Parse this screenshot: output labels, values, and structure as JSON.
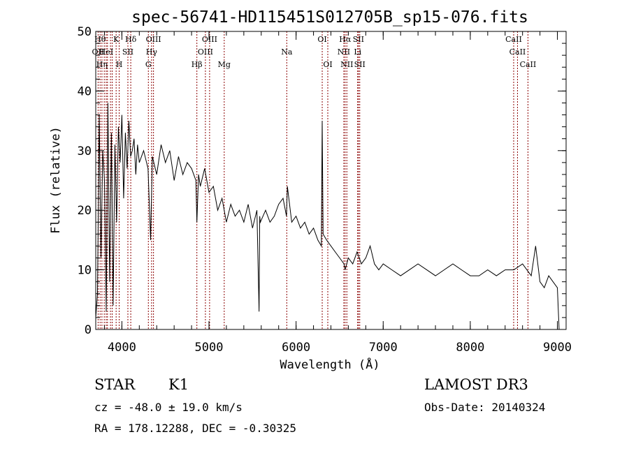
{
  "chart_data": {
    "type": "line",
    "title": "spec-56741-HD115451S012705B_sp15-076.fits",
    "xlabel": "Wavelength (Å)",
    "ylabel": "Flux (relative)",
    "xlim": [
      3700,
      9100
    ],
    "ylim": [
      0,
      50
    ],
    "xticks": [
      4000,
      5000,
      6000,
      7000,
      8000,
      9000
    ],
    "yticks": [
      0,
      10,
      20,
      30,
      40,
      50
    ],
    "grid": false,
    "line_color": "#000000",
    "marker_color": "#8b0000",
    "series": [
      {
        "x": [
          3700,
          3720,
          3740,
          3760,
          3780,
          3800,
          3820,
          3840,
          3860,
          3880,
          3900,
          3920,
          3940,
          3960,
          3980,
          4000,
          4020,
          4040,
          4060,
          4080,
          4100,
          4120,
          4140,
          4160,
          4180,
          4200,
          4250,
          4300,
          4330,
          4350,
          4400,
          4450,
          4500,
          4550,
          4600,
          4650,
          4700,
          4750,
          4800,
          4850,
          4861,
          4880,
          4900,
          4950,
          5000,
          5050,
          5100,
          5150,
          5200,
          5250,
          5300,
          5350,
          5400,
          5450,
          5500,
          5550,
          5575,
          5582,
          5590,
          5650,
          5700,
          5750,
          5800,
          5850,
          5890,
          5900,
          5950,
          6000,
          6050,
          6100,
          6150,
          6200,
          6250,
          6290,
          6300,
          6310,
          6350,
          6400,
          6450,
          6500,
          6550,
          6563,
          6600,
          6650,
          6700,
          6750,
          6800,
          6850,
          6900,
          6950,
          7000,
          7100,
          7200,
          7300,
          7400,
          7500,
          7600,
          7700,
          7800,
          7900,
          8000,
          8100,
          8200,
          8300,
          8400,
          8500,
          8600,
          8700,
          8750,
          8800,
          8850,
          8900,
          8950,
          9000,
          9020
        ],
        "y": [
          2,
          6,
          36,
          12,
          30,
          25,
          3,
          38,
          8,
          33,
          4,
          31,
          18,
          34,
          28,
          36,
          22,
          33,
          27,
          35,
          29,
          30,
          32,
          26,
          31,
          28,
          30,
          27,
          15,
          29,
          26,
          31,
          28,
          30,
          25,
          29,
          26,
          28,
          27,
          25,
          18,
          26,
          24,
          27,
          23,
          24,
          20,
          22,
          18,
          21,
          19,
          20,
          18,
          21,
          17,
          20,
          3,
          19,
          18,
          20,
          18,
          19,
          21,
          22,
          19,
          24,
          18,
          19,
          17,
          18,
          16,
          17,
          15,
          14,
          35,
          16,
          15,
          14,
          13,
          12,
          11,
          10,
          12,
          11,
          13,
          11,
          12,
          14,
          11,
          10,
          11,
          10,
          9,
          10,
          11,
          10,
          9,
          10,
          11,
          10,
          9,
          9,
          10,
          9,
          10,
          10,
          11,
          9,
          14,
          8,
          7,
          9,
          8,
          7,
          0
        ]
      }
    ],
    "lines": [
      {
        "wl": 3727,
        "label": "OII",
        "row": 1
      },
      {
        "wl": 3750,
        "label": "Hθ",
        "row": 0
      },
      {
        "wl": 3771,
        "label": "Hη",
        "row": 2
      },
      {
        "wl": 3798,
        "label": "",
        "row": -1
      },
      {
        "wl": 3820,
        "label": "HeI",
        "row": 1
      },
      {
        "wl": 3835,
        "label": "",
        "row": -1
      },
      {
        "wl": 3869,
        "label": "",
        "row": -1
      },
      {
        "wl": 3889,
        "label": "",
        "row": -1
      },
      {
        "wl": 3934,
        "label": "K",
        "row": 0
      },
      {
        "wl": 3969,
        "label": "H",
        "row": 2
      },
      {
        "wl": 4069,
        "label": "SII",
        "row": 1
      },
      {
        "wl": 4102,
        "label": "Hδ",
        "row": 0
      },
      {
        "wl": 4304,
        "label": "G",
        "row": 2
      },
      {
        "wl": 4341,
        "label": "Hγ",
        "row": 1
      },
      {
        "wl": 4363,
        "label": "OIII",
        "row": 0
      },
      {
        "wl": 4861,
        "label": "Hβ",
        "row": 2
      },
      {
        "wl": 4959,
        "label": "OIII",
        "row": 1
      },
      {
        "wl": 5007,
        "label": "OIII",
        "row": 0
      },
      {
        "wl": 5175,
        "label": "Mg",
        "row": 2
      },
      {
        "wl": 5893,
        "label": "Na",
        "row": 1
      },
      {
        "wl": 6300,
        "label": "OI",
        "row": 0
      },
      {
        "wl": 6364,
        "label": "OI",
        "row": 2
      },
      {
        "wl": 6548,
        "label": "NII",
        "row": 1
      },
      {
        "wl": 6563,
        "label": "Hα",
        "row": 0
      },
      {
        "wl": 6583,
        "label": "NII",
        "row": 2
      },
      {
        "wl": 6707,
        "label": "Li",
        "row": 1
      },
      {
        "wl": 6716,
        "label": "SII",
        "row": 0
      },
      {
        "wl": 6731,
        "label": "SII",
        "row": 2
      },
      {
        "wl": 8498,
        "label": "CaII",
        "row": 0
      },
      {
        "wl": 8542,
        "label": "CaII",
        "row": 1
      },
      {
        "wl": 8662,
        "label": "CaII",
        "row": 2
      }
    ]
  },
  "info": {
    "class": "STAR",
    "subclass": "K1",
    "survey": "LAMOST DR3",
    "cz": "cz = -48.0 ± 19.0 km/s",
    "obs_date": "Obs-Date: 20140324",
    "radec": "RA = 178.12288, DEC =  -0.30325"
  }
}
